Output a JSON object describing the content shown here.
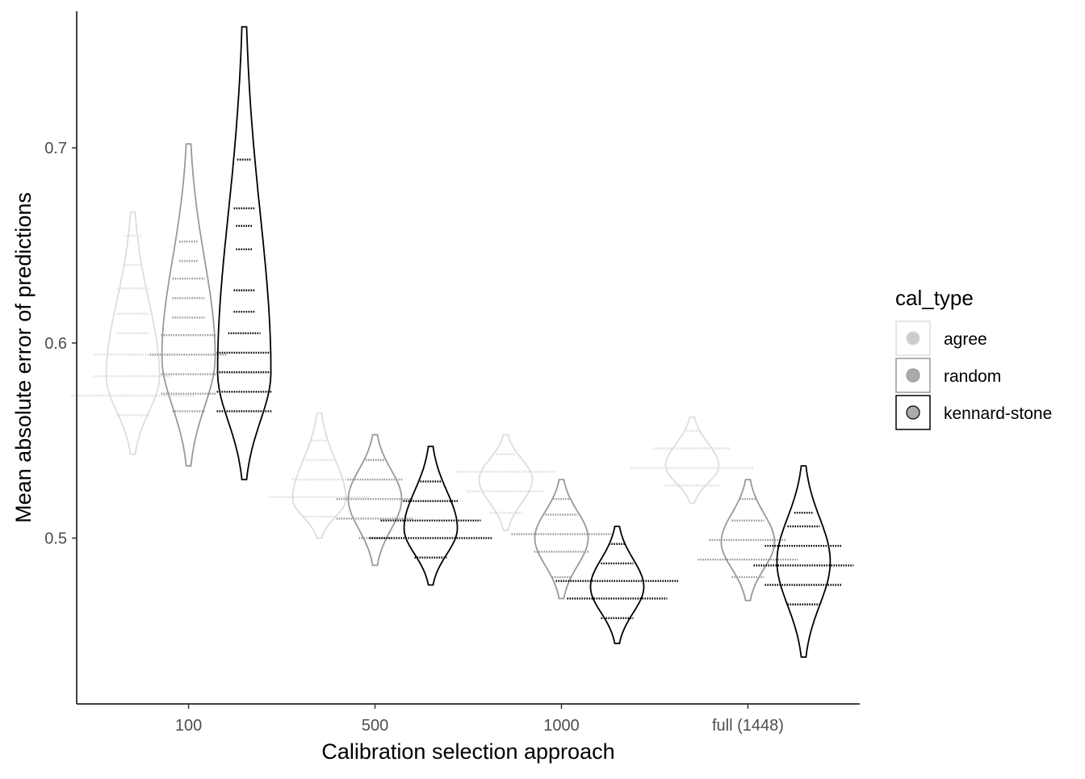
{
  "chart_data": {
    "type": "violin",
    "title": "",
    "xlabel": "Calibration selection approach",
    "ylabel": "Mean absolute error of predictions",
    "categories": [
      "100",
      "500",
      "1000",
      "full (1448)"
    ],
    "ylim": [
      0.415,
      0.77
    ],
    "yticks": [
      0.5,
      0.6,
      0.7
    ],
    "ytick_labels": [
      "0.5",
      "0.6",
      "0.7"
    ],
    "grid": false,
    "legend": {
      "title": "cal_type",
      "position": "right",
      "entries": [
        {
          "label": "agree",
          "color": "#cccccc",
          "line": "#dddddd"
        },
        {
          "label": "random",
          "color": "#aaaaaa",
          "line": "#999999"
        },
        {
          "label": "kennard-stone",
          "color": "#aaaaaa",
          "line": "#000000"
        }
      ]
    },
    "series": [
      {
        "name": "agree",
        "line_color": "#dddddd",
        "violins": [
          {
            "category": "100",
            "min": 0.543,
            "max": 0.667,
            "mode": 0.583,
            "bins": [
              [
                0.563,
                1
              ],
              [
                0.573,
                5
              ],
              [
                0.583,
                3
              ],
              [
                0.594,
                3
              ],
              [
                0.605,
                1
              ],
              [
                0.615,
                1
              ],
              [
                0.628,
                1
              ],
              [
                0.64,
                0.3
              ],
              [
                0.655,
                0.3
              ]
            ]
          },
          {
            "category": "500",
            "min": 0.5,
            "max": 0.564,
            "mode": 0.52,
            "bins": [
              [
                0.511,
                1
              ],
              [
                0.521,
                4
              ],
              [
                0.53,
                2
              ],
              [
                0.54,
                1
              ],
              [
                0.55,
                0.3
              ]
            ]
          },
          {
            "category": "1000",
            "min": 0.504,
            "max": 0.553,
            "mode": 0.53,
            "bins": [
              [
                0.513,
                1
              ],
              [
                0.524,
                3
              ],
              [
                0.534,
                4
              ],
              [
                0.543,
                0.4
              ]
            ]
          },
          {
            "category": "full (1448)",
            "min": 0.518,
            "max": 0.562,
            "mode": 0.537,
            "bins": [
              [
                0.527,
                2
              ],
              [
                0.536,
                5
              ],
              [
                0.546,
                3
              ],
              [
                0.555,
                0.3
              ]
            ]
          }
        ]
      },
      {
        "name": "random",
        "line_color": "#999999",
        "violins": [
          {
            "category": "100",
            "min": 0.537,
            "max": 0.702,
            "mode": 0.593,
            "bins": [
              [
                0.565,
                1
              ],
              [
                0.574,
                2
              ],
              [
                0.584,
                2
              ],
              [
                0.594,
                3
              ],
              [
                0.604,
                2
              ],
              [
                0.613,
                1
              ],
              [
                0.623,
                1
              ],
              [
                0.633,
                1
              ],
              [
                0.642,
                0.4
              ],
              [
                0.652,
                0.4
              ]
            ]
          },
          {
            "category": "500",
            "min": 0.486,
            "max": 0.553,
            "mode": 0.52,
            "bins": [
              [
                0.5,
                1
              ],
              [
                0.51,
                3
              ],
              [
                0.52,
                3
              ],
              [
                0.53,
                2
              ],
              [
                0.54,
                0.4
              ]
            ]
          },
          {
            "category": "1000",
            "min": 0.469,
            "max": 0.53,
            "mode": 0.5,
            "bins": [
              [
                0.48,
                0.4
              ],
              [
                0.493,
                2
              ],
              [
                0.502,
                4
              ],
              [
                0.512,
                1
              ],
              [
                0.52,
                0.3
              ]
            ]
          },
          {
            "category": "full (1448)",
            "min": 0.468,
            "max": 0.53,
            "mode": 0.498,
            "bins": [
              [
                0.48,
                1
              ],
              [
                0.489,
                4
              ],
              [
                0.499,
                3
              ],
              [
                0.509,
                1
              ],
              [
                0.52,
                0.3
              ]
            ]
          }
        ]
      },
      {
        "name": "kennard-stone",
        "line_color": "#000000",
        "violins": [
          {
            "category": "100",
            "min": 0.53,
            "max": 0.762,
            "mode": 0.585,
            "bins": [
              [
                0.565,
                2
              ],
              [
                0.575,
                2
              ],
              [
                0.585,
                2
              ],
              [
                0.595,
                2
              ],
              [
                0.605,
                1
              ],
              [
                0.616,
                0.5
              ],
              [
                0.627,
                0.5
              ],
              [
                0.648,
                0.3
              ],
              [
                0.66,
                0.3
              ],
              [
                0.669,
                0.5
              ],
              [
                0.694,
                0.2
              ]
            ]
          },
          {
            "category": "500",
            "min": 0.476,
            "max": 0.547,
            "mode": 0.505,
            "bins": [
              [
                0.49,
                1
              ],
              [
                0.5,
                5
              ],
              [
                0.509,
                4
              ],
              [
                0.519,
                2
              ],
              [
                0.529,
                0.5
              ]
            ]
          },
          {
            "category": "1000",
            "min": 0.446,
            "max": 0.506,
            "mode": 0.475,
            "bins": [
              [
                0.459,
                1
              ],
              [
                0.469,
                4
              ],
              [
                0.478,
                5
              ],
              [
                0.487,
                1
              ],
              [
                0.497,
                0.3
              ]
            ]
          },
          {
            "category": "full (1448)",
            "min": 0.439,
            "max": 0.537,
            "mode": 0.488,
            "bins": [
              [
                0.466,
                1
              ],
              [
                0.476,
                3
              ],
              [
                0.486,
                4
              ],
              [
                0.496,
                3
              ],
              [
                0.506,
                1
              ],
              [
                0.513,
                0.4
              ]
            ]
          }
        ]
      }
    ]
  }
}
